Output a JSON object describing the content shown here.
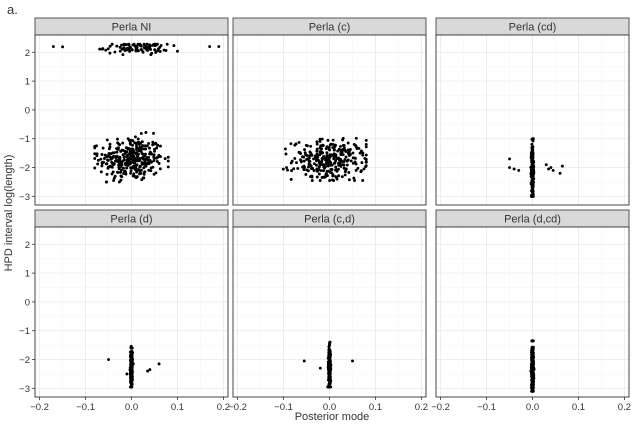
{
  "chart_data": {
    "type": "scatter",
    "panel_letter": "a.",
    "xlabel": "Posterior mode",
    "ylabel": "HPD interval log(length)",
    "xlim": [
      -0.21,
      0.21
    ],
    "ylim": [
      -3.3,
      2.6
    ],
    "xticks": [
      -0.2,
      -0.1,
      0.0,
      0.1,
      0.2
    ],
    "xtick_labels": [
      "−0.2",
      "−0.1",
      "0.0",
      "0.1",
      "0.2"
    ],
    "yticks": [
      -3,
      -2,
      -1,
      0,
      1,
      2
    ],
    "ytick_labels": [
      "−3",
      "−2",
      "−1",
      "0",
      "1",
      "2"
    ],
    "grid": true,
    "facet_layout": {
      "rows": 2,
      "cols": 3
    },
    "colors": {
      "points": "#000000",
      "strip": "#d9d9d9",
      "grid_major": "#ebebeb",
      "grid_minor": "#f5f5f5",
      "frame": "#333333"
    },
    "panels": [
      {
        "title": "Perla NI",
        "clusters": [
          {
            "n": 340,
            "x_center": 0.0,
            "x_sd": 0.035,
            "x_range": [
              -0.08,
              0.08
            ],
            "y_center": -1.7,
            "y_sd": 0.38,
            "y_range": [
              -2.5,
              -0.7
            ]
          },
          {
            "n": 95,
            "x_center": 0.01,
            "x_sd": 0.035,
            "x_range": [
              -0.08,
              0.1
            ],
            "y_center": 2.15,
            "y_sd": 0.1,
            "y_range": [
              1.92,
              2.28
            ]
          }
        ],
        "points": [
          [
            -0.17,
            2.2
          ],
          [
            -0.15,
            2.19
          ],
          [
            0.17,
            2.2
          ],
          [
            0.19,
            2.2
          ]
        ]
      },
      {
        "title": "Perla (c)",
        "clusters": [
          {
            "n": 300,
            "x_center": 0.0,
            "x_sd": 0.04,
            "x_range": [
              -0.11,
              0.08
            ],
            "y_center": -1.75,
            "y_sd": 0.35,
            "y_range": [
              -2.45,
              -0.85
            ]
          }
        ],
        "points": []
      },
      {
        "title": "Perla (cd)",
        "clusters": [
          {
            "n": 260,
            "x_center": 0.0,
            "x_sd": 0.0012,
            "x_range": [
              -0.004,
              0.004
            ],
            "y_center": -2.1,
            "y_sd": 0.45,
            "y_range": [
              -3.0,
              -1.0
            ]
          }
        ],
        "points": [
          [
            -0.05,
            -1.7
          ],
          [
            -0.05,
            -2.0
          ],
          [
            -0.04,
            -2.05
          ],
          [
            -0.03,
            -2.1
          ],
          [
            0.03,
            -1.9
          ],
          [
            0.035,
            -2.05
          ],
          [
            0.045,
            -2.1
          ],
          [
            0.06,
            -2.2
          ],
          [
            0.065,
            -1.95
          ],
          [
            0.04,
            -2.0
          ]
        ]
      },
      {
        "title": "Perla (d)",
        "clusters": [
          {
            "n": 260,
            "x_center": 0.0,
            "x_sd": 0.0012,
            "x_range": [
              -0.004,
              0.004
            ],
            "y_center": -2.3,
            "y_sd": 0.35,
            "y_range": [
              -2.95,
              -1.4
            ]
          }
        ],
        "points": [
          [
            -0.05,
            -2.0
          ],
          [
            -0.01,
            -2.5
          ],
          [
            0.04,
            -2.35
          ],
          [
            0.035,
            -2.4
          ],
          [
            0.06,
            -2.15
          ]
        ]
      },
      {
        "title": "Perla (c,d)",
        "clusters": [
          {
            "n": 260,
            "x_center": 0.0,
            "x_sd": 0.0012,
            "x_range": [
              -0.004,
              0.004
            ],
            "y_center": -2.3,
            "y_sd": 0.35,
            "y_range": [
              -2.95,
              -1.4
            ]
          }
        ],
        "points": [
          [
            -0.055,
            -2.05
          ],
          [
            -0.02,
            -2.3
          ],
          [
            0.05,
            -2.05
          ]
        ]
      },
      {
        "title": "Perla (d,cd)",
        "clusters": [
          {
            "n": 300,
            "x_center": 0.0,
            "x_sd": 0.0012,
            "x_range": [
              -0.004,
              0.004
            ],
            "y_center": -2.3,
            "y_sd": 0.4,
            "y_range": [
              -3.1,
              -1.35
            ]
          }
        ],
        "points": []
      }
    ]
  }
}
